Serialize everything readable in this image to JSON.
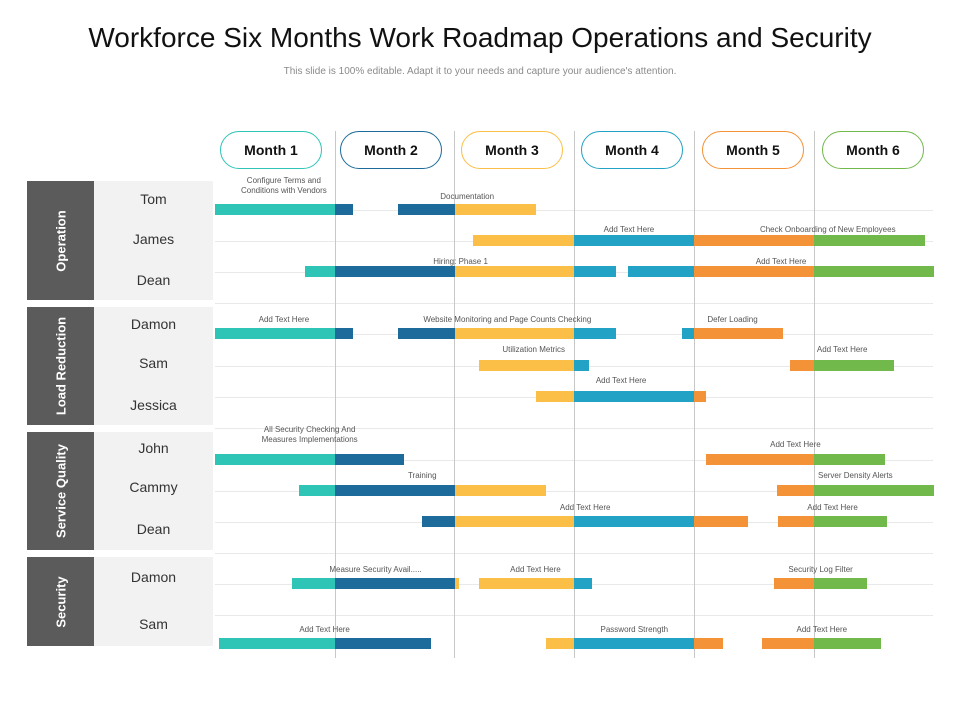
{
  "title": "Workforce Six Months Work Roadmap Operations and Security",
  "subtitle": "This slide is 100% editable. Adapt it to your needs and capture your audience's attention.",
  "colors": {
    "teal": "#2ec4b6",
    "navy": "#1d6b9a",
    "yellow": "#fbbf47",
    "blue": "#22a2c4",
    "orange": "#f39237",
    "green": "#72b94c",
    "group_bg": "#5b5b5b"
  },
  "months": [
    {
      "label": "Month 1",
      "color": "#2ec4b6"
    },
    {
      "label": "Month 2",
      "color": "#1d6b9a"
    },
    {
      "label": "Month 3",
      "color": "#fbbf47"
    },
    {
      "label": "Month 4",
      "color": "#22a2c4"
    },
    {
      "label": "Month 5",
      "color": "#f39237"
    },
    {
      "label": "Month 6",
      "color": "#72b94c"
    }
  ],
  "groups": [
    {
      "label": "Operation",
      "people": [
        "Tom",
        "James",
        "Dean"
      ]
    },
    {
      "label": "Load Reduction",
      "people": [
        "Damon",
        "Sam",
        "Jessica"
      ]
    },
    {
      "label": "Service Quality",
      "people": [
        "John",
        "Cammy",
        "Dean"
      ]
    },
    {
      "label": "Security",
      "people": [
        "Damon",
        "Sam"
      ]
    }
  ],
  "tasks": [
    {
      "label": "Configure Terms and\nConditions with Vendors",
      "start": 1.0,
      "end": 2.15
    },
    {
      "label": "Documentation",
      "start": 2.53,
      "end": 3.68
    },
    {
      "label": "Add Text Here",
      "start": 3.15,
      "end": 5.76
    },
    {
      "label": "Check Onboarding of New Employees",
      "start": 5.3,
      "end": 6.93
    },
    {
      "label": "Hiring: Phase 1",
      "start": 1.75,
      "end": 4.35
    },
    {
      "label": "Add Text Here",
      "start": 4.45,
      "end": 7.0
    },
    {
      "label": "Add Text Here",
      "start": 1.0,
      "end": 2.15
    },
    {
      "label": "Website Monitoring and Page Counts Checking",
      "start": 2.53,
      "end": 4.35
    },
    {
      "label": "Defer Loading",
      "start": 4.9,
      "end": 5.74
    },
    {
      "label": "Utilization Metrics",
      "start": 3.2,
      "end": 4.12
    },
    {
      "label": "Add Text Here",
      "start": 5.8,
      "end": 6.67
    },
    {
      "label": "Add Text Here",
      "start": 3.68,
      "end": 5.1
    },
    {
      "label": "All Security Checking And\nMeasures Implementations",
      "start": 1.0,
      "end": 2.58
    },
    {
      "label": "Add Text Here",
      "start": 5.1,
      "end": 6.59
    },
    {
      "label": "Training",
      "start": 1.7,
      "end": 3.76
    },
    {
      "label": "Server Density Alerts",
      "start": 5.69,
      "end": 7.0
    },
    {
      "label": "Add Text Here",
      "start": 2.73,
      "end": 5.45
    },
    {
      "label": "Add Text Here",
      "start": 5.7,
      "end": 6.61
    },
    {
      "label": "Measure Security Avail.....",
      "start": 1.64,
      "end": 3.04
    },
    {
      "label": "Add Text Here",
      "start": 3.2,
      "end": 4.15
    },
    {
      "label": "Security Log Filter",
      "start": 5.67,
      "end": 6.44
    },
    {
      "label": "Add Text Here",
      "start": 1.03,
      "end": 2.8
    },
    {
      "label": "Password Strength",
      "start": 3.76,
      "end": 5.24
    },
    {
      "label": "Add Text Here",
      "start": 5.57,
      "end": 6.56
    }
  ]
}
